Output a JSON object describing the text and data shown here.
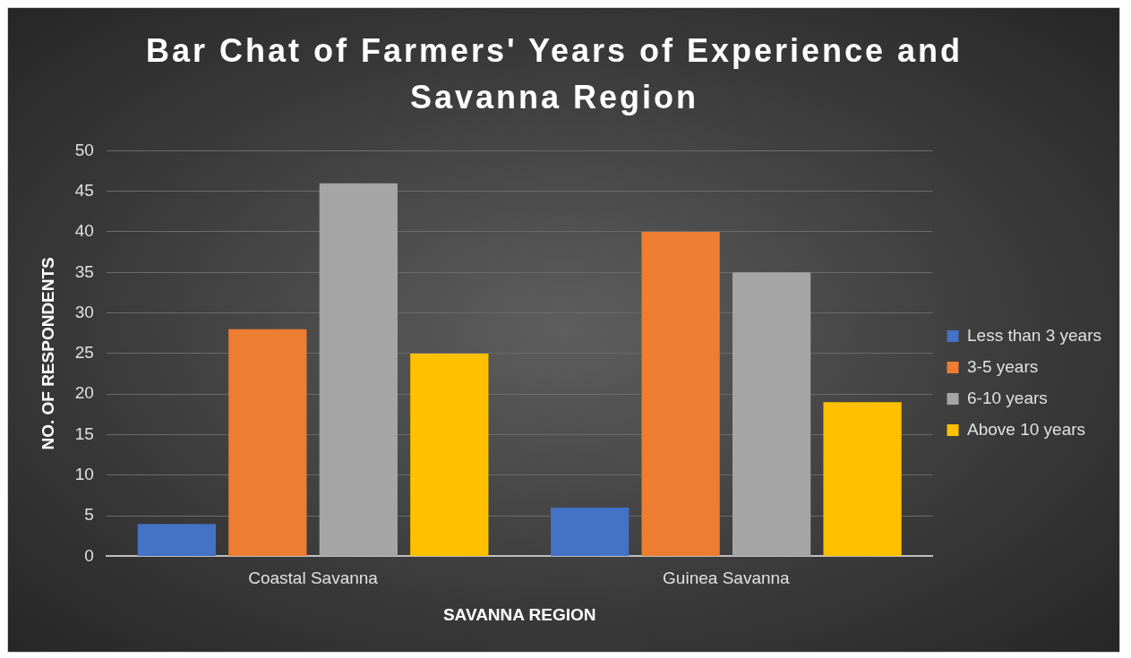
{
  "chart_data": {
    "type": "bar",
    "title": "Bar Chat of Farmers' Years of Experience and Savanna Region",
    "xlabel": "SAVANNA REGION",
    "ylabel": "NO. OF RESPONDENTS",
    "categories": [
      "Coastal Savanna",
      "Guinea Savanna"
    ],
    "series": [
      {
        "name": "Less than 3 years",
        "color": "#4472c4",
        "values": [
          4,
          6
        ]
      },
      {
        "name": "3-5 years",
        "color": "#ed7d31",
        "values": [
          28,
          40
        ]
      },
      {
        "name": "6-10 years",
        "color": "#a5a5a5",
        "values": [
          46,
          35
        ]
      },
      {
        "name": "Above 10 years",
        "color": "#ffc000",
        "values": [
          25,
          19
        ]
      }
    ],
    "ylim": [
      0,
      50
    ],
    "yticks": [
      0,
      5,
      10,
      15,
      20,
      25,
      30,
      35,
      40,
      45,
      50
    ],
    "grid": "y",
    "legend": "right"
  }
}
